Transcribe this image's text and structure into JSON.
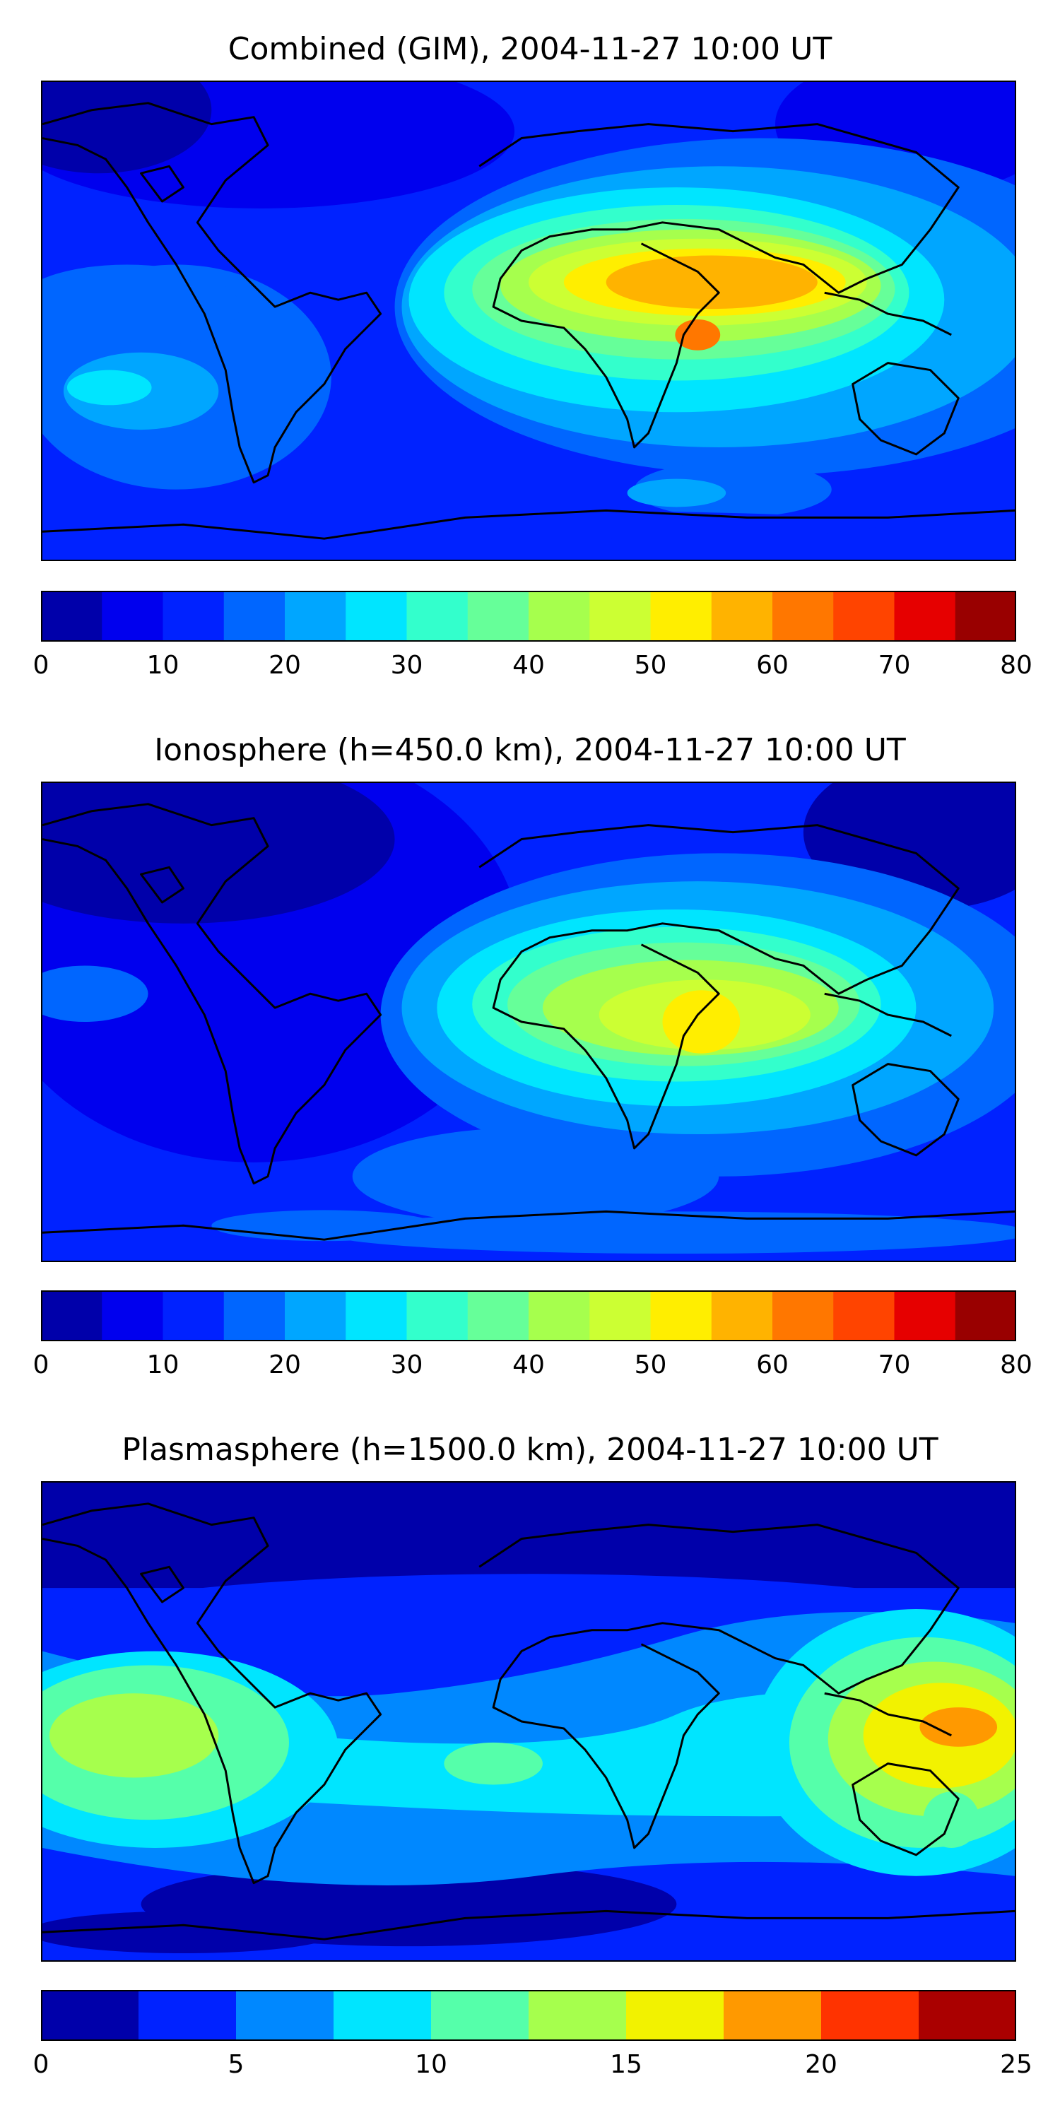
{
  "figure": {
    "panels": [
      {
        "id": "combined",
        "title": "Combined (GIM), 2004-11-27 10:00 UT",
        "colorbar": {
          "min": 0,
          "max": 80,
          "step": 5,
          "ticks": [
            "0",
            "10",
            "20",
            "30",
            "40",
            "50",
            "60",
            "70",
            "80"
          ],
          "colors": [
            "#0000aa",
            "#0000ee",
            "#0022ff",
            "#0066ff",
            "#00a6ff",
            "#00e5ff",
            "#33ffcc",
            "#66ff99",
            "#a6ff4d",
            "#ccff33",
            "#ffee00",
            "#ffb300",
            "#ff7700",
            "#ff4400",
            "#e60000",
            "#990000"
          ]
        }
      },
      {
        "id": "ionosphere",
        "title": "Ionosphere  (h=450.0 km), 2004-11-27 10:00 UT",
        "colorbar": {
          "min": 0,
          "max": 80,
          "step": 5,
          "ticks": [
            "0",
            "10",
            "20",
            "30",
            "40",
            "50",
            "60",
            "70",
            "80"
          ],
          "colors": [
            "#0000aa",
            "#0000ee",
            "#0022ff",
            "#0066ff",
            "#00a6ff",
            "#00e5ff",
            "#33ffcc",
            "#66ff99",
            "#a6ff4d",
            "#ccff33",
            "#ffee00",
            "#ffb300",
            "#ff7700",
            "#ff4400",
            "#e60000",
            "#990000"
          ]
        }
      },
      {
        "id": "plasmasphere",
        "title": "Plasmasphere (h=1500.0 km), 2004-11-27 10:00 UT",
        "colorbar": {
          "min": 0,
          "max": 25,
          "step": 2.5,
          "ticks": [
            "0",
            "5",
            "10",
            "15",
            "20",
            "25"
          ],
          "colors": [
            "#0000aa",
            "#0022ff",
            "#0088ff",
            "#00e5ff",
            "#55ffaa",
            "#a6ff4d",
            "#f2f200",
            "#ff9900",
            "#ff3300",
            "#aa0000"
          ]
        }
      }
    ]
  },
  "chart_data": [
    {
      "type": "heatmap",
      "title": "Combined (GIM), 2004-11-27 10:00 UT",
      "colorbar_range": [
        0,
        80
      ],
      "levels": [
        0,
        5,
        10,
        15,
        20,
        25,
        30,
        35,
        40,
        45,
        50,
        55,
        60,
        65,
        70,
        75,
        80
      ],
      "peak_region": "Africa / Indian Ocean",
      "peak_value_approx": 62
    },
    {
      "type": "heatmap",
      "title": "Ionosphere  (h=450.0 km), 2004-11-27 10:00 UT",
      "colorbar_range": [
        0,
        80
      ],
      "levels": [
        0,
        5,
        10,
        15,
        20,
        25,
        30,
        35,
        40,
        45,
        50,
        55,
        60,
        65,
        70,
        75,
        80
      ],
      "peak_region": "East Africa",
      "peak_value_approx": 52
    },
    {
      "type": "heatmap",
      "title": "Plasmasphere (h=1500.0 km), 2004-11-27 10:00 UT",
      "colorbar_range": [
        0,
        25
      ],
      "levels": [
        0,
        2.5,
        5,
        7.5,
        10,
        12.5,
        15,
        17.5,
        20,
        22.5,
        25
      ],
      "peak_region": "Indonesia / New Guinea",
      "peak_value_approx": 18
    }
  ]
}
